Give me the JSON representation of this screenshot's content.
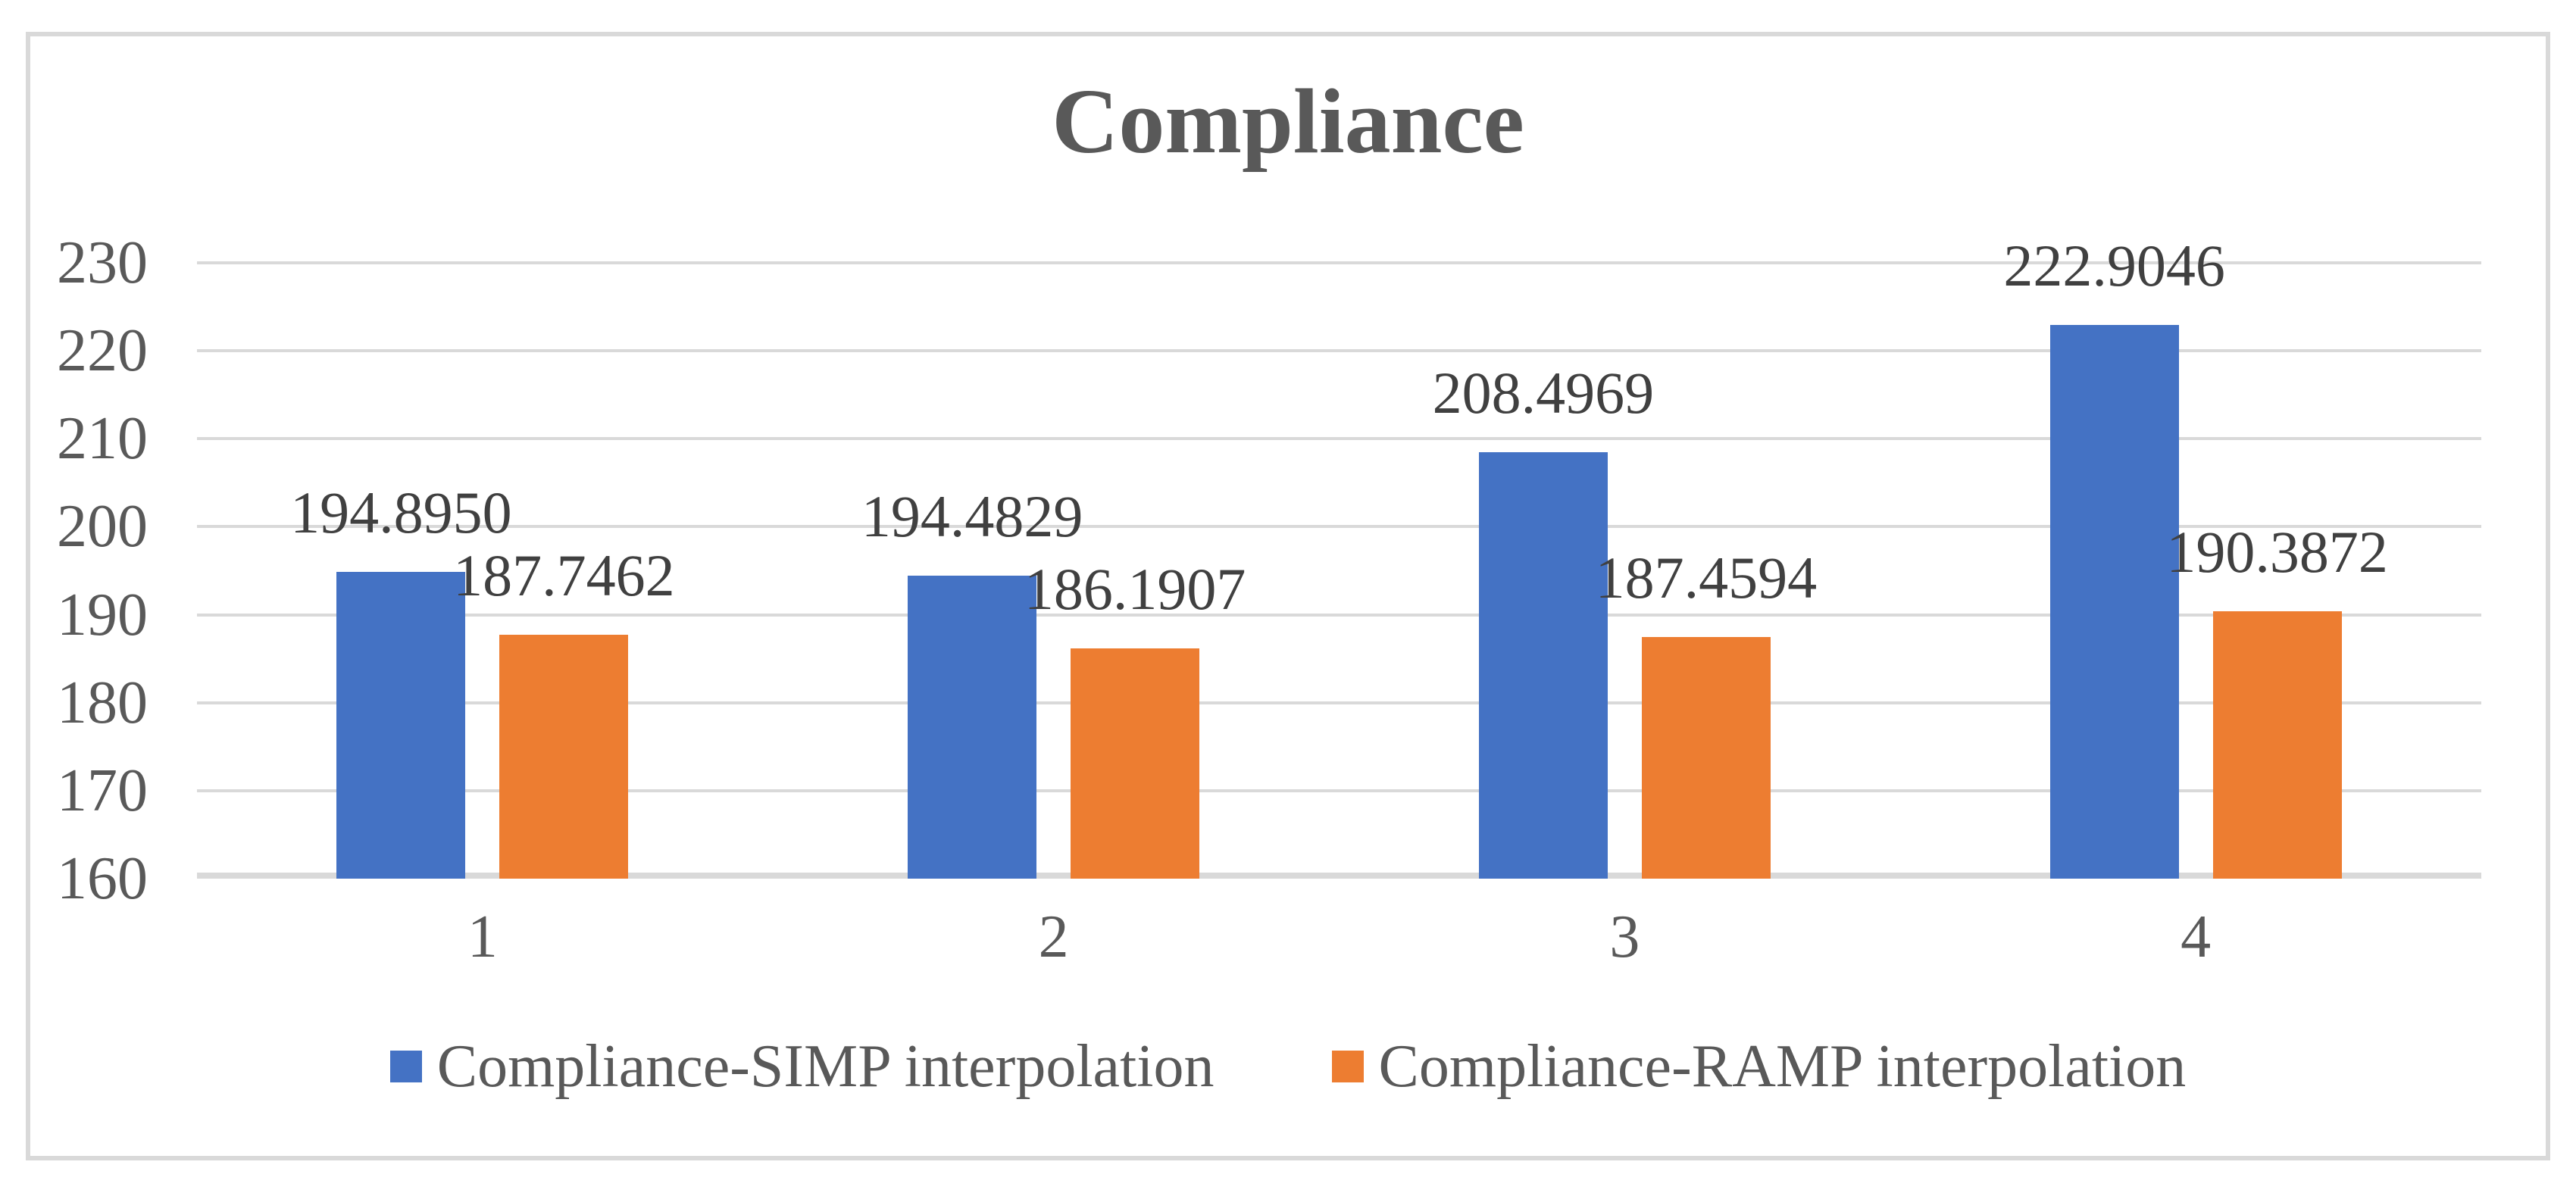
{
  "title": "Compliance",
  "colors": {
    "series_simp": "#4472C4",
    "series_ramp": "#ED7D31",
    "gridline": "#D9D9D9",
    "frame_border": "#D9D9D9",
    "axis_text": "#595959",
    "data_label_text": "#404040",
    "title_text": "#595959",
    "background": "#FFFFFF"
  },
  "chart_data": {
    "type": "bar",
    "title": "Compliance",
    "categories": [
      "1",
      "2",
      "3",
      "4"
    ],
    "series": [
      {
        "name": "Compliance-SIMP interpolation",
        "color": "#4472C4",
        "values": [
          194.895,
          194.4829,
          208.4969,
          222.9046
        ],
        "labels": [
          "194.8950",
          "194.4829",
          "208.4969",
          "222.9046"
        ]
      },
      {
        "name": "Compliance-RAMP interpolation",
        "color": "#ED7D31",
        "values": [
          187.7462,
          186.1907,
          187.4594,
          190.3872
        ],
        "labels": [
          "187.7462",
          "186.1907",
          "187.4594",
          "190.3872"
        ]
      }
    ],
    "xlabel": "",
    "ylabel": "",
    "ylim": [
      160,
      230
    ],
    "y_ticks": [
      160,
      170,
      180,
      190,
      200,
      210,
      220,
      230
    ],
    "grid": true,
    "data_labels": true,
    "legend_position": "bottom"
  }
}
